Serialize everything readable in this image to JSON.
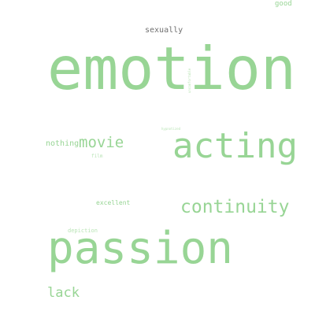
{
  "cloud": {
    "background": "#ffffff",
    "accent_color": "#98d595",
    "dark_word_color": "#6f6f6f",
    "words": {
      "good": "good",
      "sexually": "sexually",
      "emotion": "emotion",
      "small_vertical": "uncomfortable",
      "tiny1": "hypnotized",
      "nothing": "nothing",
      "movie": "movie",
      "film": "film",
      "acting": "acting",
      "excellent": "excellent",
      "continuity": "continuity",
      "depiction": "depiction",
      "passion": "passion",
      "lack": "lack"
    }
  }
}
